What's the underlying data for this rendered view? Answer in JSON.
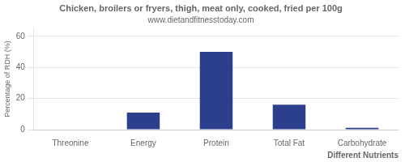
{
  "chart_data": {
    "type": "bar",
    "title": "Chicken, broilers or fryers, thigh, meat only, cooked, fried per 100g",
    "subtitle": "www.dietandfitnesstoday.com",
    "categories": [
      "Threonine",
      "Energy",
      "Protein",
      "Total Fat",
      "Carbohydrate"
    ],
    "values": [
      0.3,
      11,
      50,
      16,
      1.2
    ],
    "color": "#2b3f8c",
    "xlabel": "Different Nutrients",
    "ylabel": "Percentage of RDH (%)",
    "ylim": [
      0,
      65
    ],
    "yticks": [
      0,
      20,
      40,
      60
    ],
    "grid": true
  }
}
